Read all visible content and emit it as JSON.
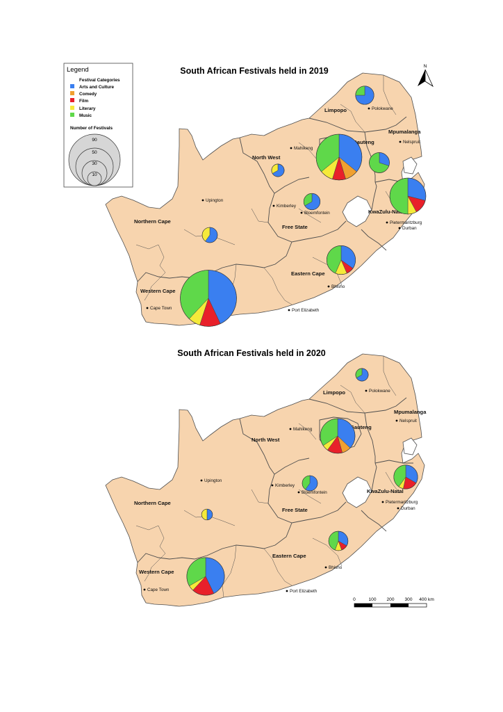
{
  "colors": {
    "land": "#f7d4ae",
    "border": "#4d4d4d",
    "arts_and_culture": "#3a7ff0",
    "comedy": "#f0a030",
    "film": "#e8202a",
    "literary": "#f5ea3a",
    "music": "#5fd84a",
    "circle_fill": "#d6d6d6"
  },
  "legend": {
    "heading": "Legend",
    "categories_title": "Festival Categories",
    "categories": [
      {
        "key": "arts_and_culture",
        "label": "Arts and Culture"
      },
      {
        "key": "comedy",
        "label": "Comedy"
      },
      {
        "key": "film",
        "label": "Film"
      },
      {
        "key": "literary",
        "label": "Literary"
      },
      {
        "key": "music",
        "label": "Music"
      }
    ],
    "size_title": "Number of Festivals",
    "size_values": [
      "90",
      "50",
      "30",
      "10"
    ]
  },
  "north_label": "N",
  "scale_bar": {
    "labels": [
      "0",
      "100",
      "200",
      "300",
      "400 km"
    ]
  },
  "provinces": {
    "limpopo": "Limpopo",
    "mpumalanga": "Mpumalanga",
    "gauteng": "Gauteng",
    "north_west": "North West",
    "kwazulu_natal": "KwaZulu-Natal",
    "free_state": "Free State",
    "northern_cape": "Northern Cape",
    "eastern_cape": "Eastern Cape",
    "western_cape": "Western Cape"
  },
  "cities": {
    "polokwane": "Polokwane",
    "nelspruit": "Nelspruit",
    "mahikeng": "Mahikeng",
    "upington": "Upington",
    "kimberley": "Kimberley",
    "bloemfontein": "Bloemfontein",
    "pietermaritzburg": "Pietermaritzburg",
    "durban": "Durban",
    "bhisho": "Bhisho",
    "port_elizabeth": "Port Elizabeth",
    "cape_town": "Cape Town"
  },
  "maps": [
    {
      "title": "South African Festivals held in 2019",
      "pies": [
        {
          "province": "limpopo",
          "slices": [
            {
              "key": "arts_and_culture",
              "value": 6
            },
            {
              "key": "music",
              "value": 2
            }
          ]
        },
        {
          "province": "gauteng",
          "slices": [
            {
              "key": "arts_and_culture",
              "value": 23
            },
            {
              "key": "comedy",
              "value": 6
            },
            {
              "key": "film",
              "value": 6
            },
            {
              "key": "literary",
              "value": 6
            },
            {
              "key": "music",
              "value": 23
            }
          ]
        },
        {
          "province": "mpumalanga",
          "slices": [
            {
              "key": "arts_and_culture",
              "value": 3
            },
            {
              "key": "music",
              "value": 7
            }
          ]
        },
        {
          "province": "north_west",
          "slices": [
            {
              "key": "arts_and_culture",
              "value": 2
            },
            {
              "key": "literary",
              "value": 1
            }
          ]
        },
        {
          "province": "kwazulu_natal",
          "slices": [
            {
              "key": "arts_and_culture",
              "value": 11
            },
            {
              "key": "film",
              "value": 5
            },
            {
              "key": "literary",
              "value": 3
            },
            {
              "key": "music",
              "value": 19
            }
          ]
        },
        {
          "province": "free_state",
          "slices": [
            {
              "key": "arts_and_culture",
              "value": 4
            },
            {
              "key": "music",
              "value": 2
            }
          ]
        },
        {
          "province": "northern_cape",
          "slices": [
            {
              "key": "arts_and_culture",
              "value": 3
            },
            {
              "key": "literary",
              "value": 2
            }
          ]
        },
        {
          "province": "eastern_cape",
          "slices": [
            {
              "key": "arts_and_culture",
              "value": 8
            },
            {
              "key": "film",
              "value": 2
            },
            {
              "key": "literary",
              "value": 3
            },
            {
              "key": "music",
              "value": 10
            }
          ]
        },
        {
          "province": "western_cape",
          "slices": [
            {
              "key": "arts_and_culture",
              "value": 43
            },
            {
              "key": "film",
              "value": 12
            },
            {
              "key": "literary",
              "value": 7
            },
            {
              "key": "music",
              "value": 38
            }
          ]
        }
      ]
    },
    {
      "title": "South African Festivals held in 2020",
      "pies": [
        {
          "province": "limpopo",
          "slices": [
            {
              "key": "arts_and_culture",
              "value": 2
            },
            {
              "key": "music",
              "value": 1
            }
          ]
        },
        {
          "province": "gauteng",
          "slices": [
            {
              "key": "arts_and_culture",
              "value": 13
            },
            {
              "key": "comedy",
              "value": 3
            },
            {
              "key": "film",
              "value": 5
            },
            {
              "key": "literary",
              "value": 2
            },
            {
              "key": "music",
              "value": 12
            }
          ]
        },
        {
          "province": "north_west",
          "slices": []
        },
        {
          "province": "kwazulu_natal",
          "slices": [
            {
              "key": "arts_and_culture",
              "value": 5
            },
            {
              "key": "film",
              "value": 3
            },
            {
              "key": "literary",
              "value": 1
            },
            {
              "key": "music",
              "value": 6
            }
          ]
        },
        {
          "province": "free_state",
          "slices": [
            {
              "key": "arts_and_culture",
              "value": 3
            },
            {
              "key": "music",
              "value": 2
            }
          ]
        },
        {
          "province": "northern_cape",
          "slices": [
            {
              "key": "arts_and_culture",
              "value": 1
            },
            {
              "key": "literary",
              "value": 1
            }
          ]
        },
        {
          "province": "eastern_cape",
          "slices": [
            {
              "key": "arts_and_culture",
              "value": 3
            },
            {
              "key": "film",
              "value": 1
            },
            {
              "key": "literary",
              "value": 1
            },
            {
              "key": "music",
              "value": 4
            }
          ]
        },
        {
          "province": "western_cape",
          "slices": [
            {
              "key": "arts_and_culture",
              "value": 18
            },
            {
              "key": "film",
              "value": 8
            },
            {
              "key": "literary",
              "value": 2
            },
            {
              "key": "music",
              "value": 14
            }
          ]
        }
      ]
    }
  ]
}
